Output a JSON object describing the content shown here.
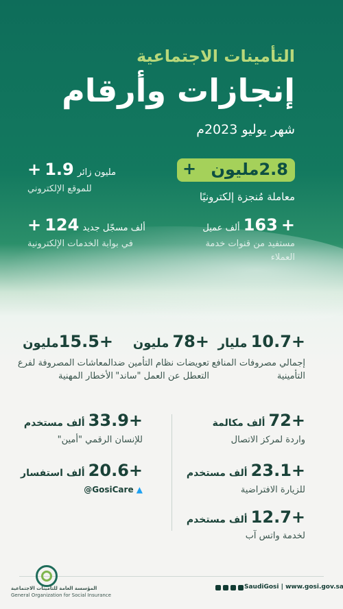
{
  "header": {
    "line1": "التأمينات الاجتماعية",
    "line2": "إنجازات وأرقام",
    "line3": "شهر يوليو 2023م"
  },
  "stats": {
    "s1": {
      "plus": "+",
      "number": "2.8",
      "unit": "مليون",
      "desc": "معاملة مُنجزة إلكترونيًا"
    },
    "s2": {
      "plus": "+",
      "number": "1.9",
      "unit": "مليون زائر",
      "desc": "للموقع الإلكتروني"
    },
    "s3": {
      "plus": "+",
      "number": "163",
      "unit": "ألف عميل",
      "desc1": "مستفيد من قنوات خدمة",
      "desc2": "العملاء"
    },
    "s4": {
      "plus": "+",
      "number": "124",
      "unit": "ألف مسجّل جديد",
      "desc": "في بوابة الخدمات الإلكترونية"
    },
    "s5": {
      "plus": "+",
      "number": "10.7",
      "unit": "مليار",
      "desc1": "إجمالي مصروفات المنافع",
      "desc2": "التأمينية"
    },
    "s6": {
      "plus": "+",
      "number": "78",
      "unit": "مليون",
      "desc1": "تعويضات نظام التأمين ضد",
      "desc2": "التعطل عن العمل \"ساند\""
    },
    "s7": {
      "plus": "+",
      "number": "15.5",
      "unit": "مليون",
      "desc1": "المعاشات المصروفة لفرع",
      "desc2": "الأخطار المهنية"
    },
    "s8": {
      "plus": "+",
      "number": "72",
      "unit": "ألف مكالمة",
      "desc": "واردة لمركز الاتصال"
    },
    "s9": {
      "plus": "+",
      "number": "33.9",
      "unit": "ألف مستخدم",
      "desc": "للإنسان الرقمي \"أمين\""
    },
    "s10": {
      "plus": "+",
      "number": "23.1",
      "unit": "ألف مستخدم",
      "desc": "للزيارة الافتراضية"
    },
    "s11": {
      "plus": "+",
      "number": "20.6",
      "unit": "ألف استفسار",
      "handle": "@GosiCare"
    },
    "s12": {
      "plus": "+",
      "number": "12.7",
      "unit": "ألف مستخدم",
      "desc": "لخدمة واتس آب"
    }
  },
  "footer": {
    "org_ar": "المؤسسة العامة للتأمينات الاجتماعية",
    "org_en": "General Organization for Social Insurance",
    "social": "SaudiGosi",
    "website": "www.gosi.gov.sa",
    "sep": "|"
  },
  "icons": [
    "twitter-icon",
    "linkedin-icon",
    "instagram-icon",
    "youtube-icon",
    "facebook-icon",
    "gosi-logo-icon"
  ]
}
